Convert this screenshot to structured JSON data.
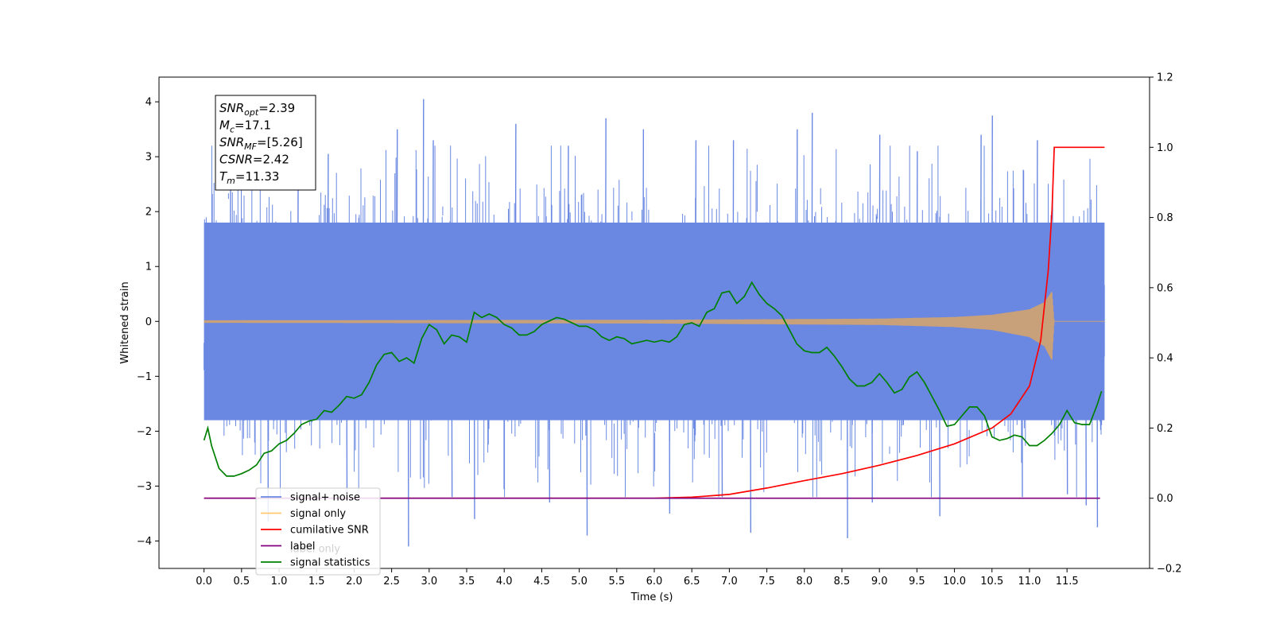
{
  "chart_data": {
    "type": "line",
    "title": "",
    "xlabel": "Time (s)",
    "ylabel": "Whitened strain",
    "xlim": [
      -0.6,
      12.6
    ],
    "ylim": [
      -4.5,
      4.45
    ],
    "y2lim": [
      -0.2,
      1.2
    ],
    "x_ticks": [
      "0.0",
      "0.5",
      "1.0",
      "1.5",
      "2.0",
      "2.5",
      "3.0",
      "3.5",
      "4.0",
      "4.5",
      "5.0",
      "5.5",
      "6.0",
      "6.5",
      "7.0",
      "7.5",
      "8.0",
      "8.5",
      "9.0",
      "9.5",
      "10.0",
      "10.5",
      "11.0",
      "11.5"
    ],
    "y_ticks": [
      "4",
      "3",
      "2",
      "1",
      "0",
      "−1",
      "−2",
      "−3",
      "−4"
    ],
    "y2_ticks": [
      "1.2",
      "1.0",
      "0.8",
      "0.6",
      "0.4",
      "0.2",
      "0.0",
      "−0.2"
    ],
    "grid": false,
    "legend_position": "lower-left",
    "info_box": [
      {
        "base": "SNR",
        "sub": "opt",
        "value": "=2.39"
      },
      {
        "base": "M",
        "sub": "c",
        "value": "=17.1"
      },
      {
        "base": "SNR",
        "sub": "MF",
        "value": "=[5.26]"
      },
      {
        "base": "CSNR",
        "sub": "",
        "value": "=2.42"
      },
      {
        "base": "T",
        "sub": "m",
        "value": "=11.33"
      }
    ],
    "series": [
      {
        "name": "signal+ noise",
        "axis": "left",
        "color": "#6a88e2",
        "style": "noise band",
        "x_range": [
          0.0,
          12.0
        ],
        "typical_envelope": [
          -1.8,
          1.8
        ],
        "peak_points": [
          {
            "x": 2.92,
            "y": 4.05
          },
          {
            "x": 2.72,
            "y": -4.1
          },
          {
            "x": 5.1,
            "y": -3.9
          },
          {
            "x": 8.57,
            "y": -3.95
          },
          {
            "x": 7.28,
            "y": -3.85
          },
          {
            "x": 9.8,
            "y": -3.55
          },
          {
            "x": 3.6,
            "y": -3.6
          },
          {
            "x": 8.1,
            "y": 3.8
          },
          {
            "x": 10.5,
            "y": 3.75
          },
          {
            "x": 11.9,
            "y": -3.75
          },
          {
            "x": 11.75,
            "y": -3.35
          },
          {
            "x": 0.85,
            "y": -3.65
          },
          {
            "x": 5.35,
            "y": 3.7
          },
          {
            "x": 6.2,
            "y": -3.5
          },
          {
            "x": 4.15,
            "y": 3.6
          },
          {
            "x": 2.57,
            "y": 3.5
          },
          {
            "x": 3.05,
            "y": 3.3
          },
          {
            "x": 5.85,
            "y": 3.5
          },
          {
            "x": 7.9,
            "y": 3.5
          },
          {
            "x": 9.0,
            "y": 3.4
          },
          {
            "x": 1.65,
            "y": 3.05
          },
          {
            "x": 0.35,
            "y": 3.3
          },
          {
            "x": 7.05,
            "y": 3.3
          },
          {
            "x": 10.35,
            "y": 3.4
          },
          {
            "x": 11.1,
            "y": 3.3
          },
          {
            "x": 6.55,
            "y": 3.3
          },
          {
            "x": 4.85,
            "y": 3.2
          },
          {
            "x": 1.25,
            "y": 3.1
          },
          {
            "x": 9.5,
            "y": 3.1
          },
          {
            "x": 10.9,
            "y": -3.2
          },
          {
            "x": 1.9,
            "y": -3.2
          },
          {
            "x": 11.5,
            "y": -3.15
          },
          {
            "x": 4.6,
            "y": -3.3
          },
          {
            "x": 6.9,
            "y": -3.2
          },
          {
            "x": 8.9,
            "y": -3.3
          },
          {
            "x": 3.3,
            "y": -3.2
          }
        ]
      },
      {
        "name": "signal only",
        "axis": "left",
        "color": "#ffa500",
        "opacity": 0.55,
        "style": "chirp",
        "points": [
          [
            0.0,
            0.02
          ],
          [
            6.0,
            0.03
          ],
          [
            9.0,
            0.05
          ],
          [
            10.0,
            0.08
          ],
          [
            10.5,
            0.12
          ],
          [
            11.0,
            0.22
          ],
          [
            11.2,
            0.35
          ],
          [
            11.3,
            0.55
          ],
          [
            11.33,
            0.0
          ]
        ]
      },
      {
        "name": "cumilative SNR",
        "axis": "right",
        "color": "#ff0000",
        "points": [
          [
            0.0,
            0.0
          ],
          [
            6.0,
            0.0
          ],
          [
            6.5,
            0.003
          ],
          [
            7.0,
            0.011
          ],
          [
            7.5,
            0.029
          ],
          [
            8.0,
            0.05
          ],
          [
            8.5,
            0.07
          ],
          [
            9.0,
            0.094
          ],
          [
            9.5,
            0.122
          ],
          [
            10.0,
            0.155
          ],
          [
            10.5,
            0.2
          ],
          [
            10.75,
            0.24
          ],
          [
            11.0,
            0.32
          ],
          [
            11.15,
            0.45
          ],
          [
            11.25,
            0.65
          ],
          [
            11.3,
            0.82
          ],
          [
            11.33,
            1.0
          ],
          [
            11.4,
            1.0
          ],
          [
            12.0,
            1.0
          ]
        ]
      },
      {
        "name": "label",
        "axis": "right",
        "color": "#800080",
        "points": [
          [
            0.0,
            0.0
          ],
          [
            11.94,
            0.0
          ]
        ]
      },
      {
        "name": "label only",
        "axis": "right",
        "color": "#cccccc",
        "hidden": true
      },
      {
        "name": "signal statistics",
        "axis": "right",
        "color": "#008000",
        "points": [
          [
            0.0,
            0.165
          ],
          [
            0.05,
            0.2
          ],
          [
            0.1,
            0.15
          ],
          [
            0.2,
            0.085
          ],
          [
            0.3,
            0.063
          ],
          [
            0.4,
            0.063
          ],
          [
            0.5,
            0.07
          ],
          [
            0.6,
            0.08
          ],
          [
            0.7,
            0.095
          ],
          [
            0.8,
            0.128
          ],
          [
            0.9,
            0.135
          ],
          [
            1.0,
            0.155
          ],
          [
            1.1,
            0.165
          ],
          [
            1.2,
            0.185
          ],
          [
            1.3,
            0.21
          ],
          [
            1.4,
            0.22
          ],
          [
            1.5,
            0.225
          ],
          [
            1.6,
            0.25
          ],
          [
            1.7,
            0.245
          ],
          [
            1.8,
            0.265
          ],
          [
            1.9,
            0.29
          ],
          [
            2.0,
            0.285
          ],
          [
            2.1,
            0.295
          ],
          [
            2.2,
            0.33
          ],
          [
            2.3,
            0.38
          ],
          [
            2.4,
            0.41
          ],
          [
            2.5,
            0.415
          ],
          [
            2.6,
            0.39
          ],
          [
            2.7,
            0.4
          ],
          [
            2.8,
            0.385
          ],
          [
            2.9,
            0.455
          ],
          [
            3.0,
            0.495
          ],
          [
            3.1,
            0.48
          ],
          [
            3.2,
            0.44
          ],
          [
            3.3,
            0.465
          ],
          [
            3.4,
            0.46
          ],
          [
            3.5,
            0.445
          ],
          [
            3.6,
            0.53
          ],
          [
            3.7,
            0.515
          ],
          [
            3.8,
            0.525
          ],
          [
            3.9,
            0.515
          ],
          [
            4.0,
            0.495
          ],
          [
            4.1,
            0.485
          ],
          [
            4.2,
            0.465
          ],
          [
            4.3,
            0.465
          ],
          [
            4.4,
            0.475
          ],
          [
            4.5,
            0.495
          ],
          [
            4.6,
            0.505
          ],
          [
            4.7,
            0.515
          ],
          [
            4.8,
            0.51
          ],
          [
            4.9,
            0.5
          ],
          [
            5.0,
            0.49
          ],
          [
            5.1,
            0.49
          ],
          [
            5.2,
            0.48
          ],
          [
            5.3,
            0.46
          ],
          [
            5.4,
            0.45
          ],
          [
            5.5,
            0.46
          ],
          [
            5.6,
            0.455
          ],
          [
            5.7,
            0.44
          ],
          [
            5.8,
            0.445
          ],
          [
            5.9,
            0.45
          ],
          [
            6.0,
            0.445
          ],
          [
            6.1,
            0.45
          ],
          [
            6.2,
            0.445
          ],
          [
            6.3,
            0.46
          ],
          [
            6.4,
            0.495
          ],
          [
            6.5,
            0.5
          ],
          [
            6.6,
            0.49
          ],
          [
            6.7,
            0.53
          ],
          [
            6.8,
            0.54
          ],
          [
            6.9,
            0.585
          ],
          [
            7.0,
            0.59
          ],
          [
            7.1,
            0.555
          ],
          [
            7.2,
            0.575
          ],
          [
            7.3,
            0.615
          ],
          [
            7.4,
            0.58
          ],
          [
            7.5,
            0.555
          ],
          [
            7.6,
            0.54
          ],
          [
            7.7,
            0.52
          ],
          [
            7.8,
            0.48
          ],
          [
            7.9,
            0.44
          ],
          [
            8.0,
            0.42
          ],
          [
            8.1,
            0.415
          ],
          [
            8.2,
            0.415
          ],
          [
            8.3,
            0.43
          ],
          [
            8.4,
            0.405
          ],
          [
            8.5,
            0.375
          ],
          [
            8.6,
            0.34
          ],
          [
            8.7,
            0.32
          ],
          [
            8.8,
            0.32
          ],
          [
            8.9,
            0.33
          ],
          [
            9.0,
            0.355
          ],
          [
            9.1,
            0.33
          ],
          [
            9.2,
            0.3
          ],
          [
            9.3,
            0.31
          ],
          [
            9.4,
            0.345
          ],
          [
            9.5,
            0.36
          ],
          [
            9.6,
            0.33
          ],
          [
            9.7,
            0.29
          ],
          [
            9.8,
            0.25
          ],
          [
            9.9,
            0.205
          ],
          [
            10.0,
            0.21
          ],
          [
            10.1,
            0.235
          ],
          [
            10.2,
            0.26
          ],
          [
            10.3,
            0.26
          ],
          [
            10.4,
            0.235
          ],
          [
            10.5,
            0.175
          ],
          [
            10.6,
            0.165
          ],
          [
            10.7,
            0.17
          ],
          [
            10.8,
            0.18
          ],
          [
            10.9,
            0.175
          ],
          [
            11.0,
            0.15
          ],
          [
            11.1,
            0.15
          ],
          [
            11.2,
            0.165
          ],
          [
            11.3,
            0.185
          ],
          [
            11.4,
            0.21
          ],
          [
            11.5,
            0.25
          ],
          [
            11.6,
            0.215
          ],
          [
            11.7,
            0.21
          ],
          [
            11.8,
            0.21
          ],
          [
            11.9,
            0.265
          ],
          [
            11.96,
            0.305
          ]
        ]
      }
    ]
  }
}
